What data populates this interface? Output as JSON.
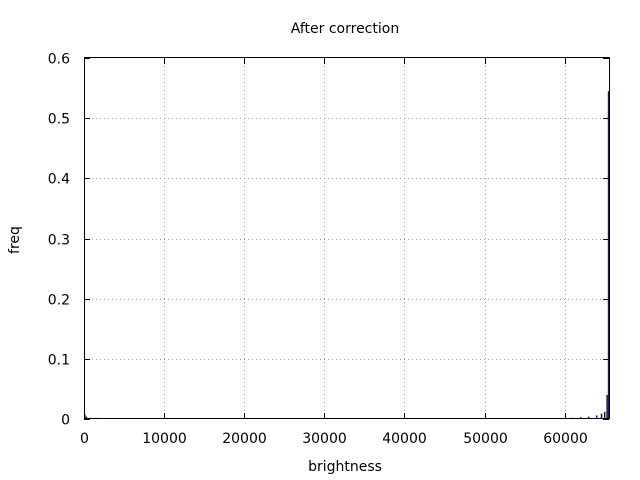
{
  "chart_data": {
    "type": "bar",
    "title": "After correction",
    "xlabel": "brightness",
    "ylabel": "freq",
    "xlim": [
      0,
      65535
    ],
    "ylim": [
      0,
      0.6
    ],
    "x_ticks": [
      "0",
      "10000",
      "20000",
      "30000",
      "40000",
      "50000",
      "60000"
    ],
    "y_ticks": [
      "0",
      "0.1",
      "0.2",
      "0.3",
      "0.4",
      "0.5",
      "0.6"
    ],
    "grid": true,
    "bar_color": "#1a1a4e",
    "bars": [
      {
        "x": 100,
        "y": 0.008
      },
      {
        "x": 300,
        "y": 0.004
      },
      {
        "x": 800,
        "y": 0.002
      },
      {
        "x": 1500,
        "y": 0.002
      },
      {
        "x": 2500,
        "y": 0.001
      },
      {
        "x": 3500,
        "y": 0.001
      },
      {
        "x": 19000,
        "y": 0.001
      },
      {
        "x": 20000,
        "y": 0.001
      },
      {
        "x": 51000,
        "y": 0.001
      },
      {
        "x": 58000,
        "y": 0.001
      },
      {
        "x": 59500,
        "y": 0.0015
      },
      {
        "x": 61000,
        "y": 0.002
      },
      {
        "x": 62000,
        "y": 0.003
      },
      {
        "x": 63000,
        "y": 0.004
      },
      {
        "x": 64000,
        "y": 0.006
      },
      {
        "x": 64600,
        "y": 0.009
      },
      {
        "x": 65000,
        "y": 0.012
      },
      {
        "x": 65300,
        "y": 0.04
      },
      {
        "x": 65480,
        "y": 0.545
      }
    ]
  }
}
